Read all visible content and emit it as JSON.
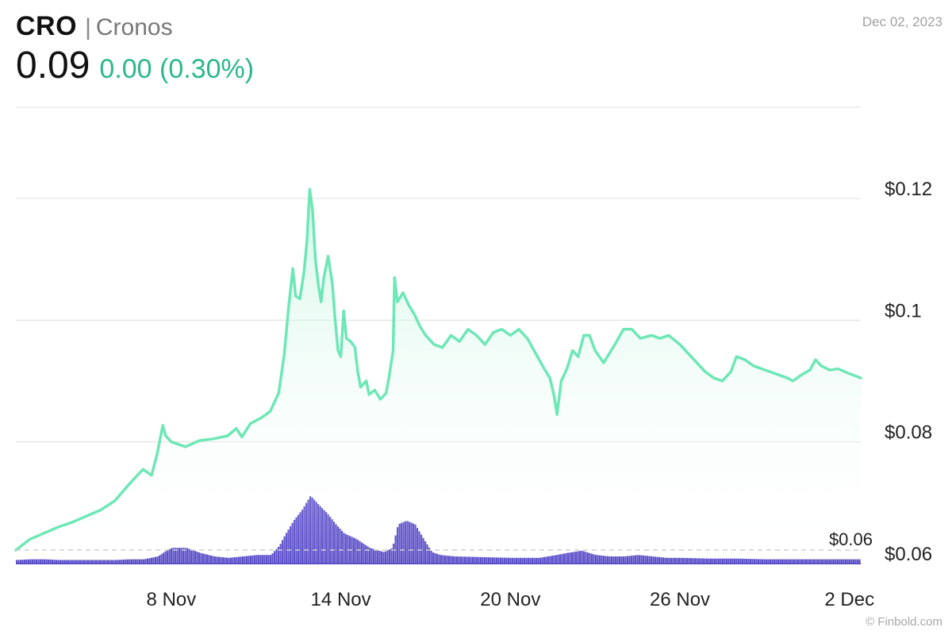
{
  "header": {
    "symbol": "CRO",
    "separator": "|",
    "name": "Cronos",
    "price": "0.09",
    "change": "0.00 (0.30%)",
    "date": "Dec 02, 2023"
  },
  "credit": "© Finbold.com",
  "colors": {
    "price_line": "#6ee7b7",
    "price_fill_top": "#c7f5e2",
    "volume": "#5b4fc9",
    "change_positive": "#2bb88a",
    "grid": "#dddddd"
  },
  "chart_data": {
    "type": "line",
    "title": "CRO | Cronos",
    "ylim": [
      0.06,
      0.135
    ],
    "y_ticks": [
      {
        "value": 0.12,
        "label": "$0.12"
      },
      {
        "value": 0.1,
        "label": "$0.1"
      },
      {
        "value": 0.08,
        "label": "$0.08"
      },
      {
        "value": 0.06,
        "label": "$0.06"
      }
    ],
    "x_ticks": [
      {
        "day": 8,
        "label": "8 Nov"
      },
      {
        "day": 14,
        "label": "14 Nov"
      },
      {
        "day": 20,
        "label": "20 Nov"
      },
      {
        "day": 26,
        "label": "26 Nov"
      },
      {
        "day": 32,
        "label": "2 Dec"
      }
    ],
    "xlim_day": [
      2.5,
      32.4
    ],
    "grid": "horizontal",
    "volume_min_label": "$0.06",
    "series": [
      {
        "name": "",
        "points": [
          [
            2.5,
            0.0622
          ],
          [
            3.0,
            0.064
          ],
          [
            3.5,
            0.065
          ],
          [
            4.0,
            0.066
          ],
          [
            4.5,
            0.0668
          ],
          [
            5.0,
            0.0678
          ],
          [
            5.5,
            0.0688
          ],
          [
            6.0,
            0.0703
          ],
          [
            6.5,
            0.073
          ],
          [
            7.0,
            0.0755
          ],
          [
            7.3,
            0.0745
          ],
          [
            7.5,
            0.078
          ],
          [
            7.7,
            0.0827
          ],
          [
            7.8,
            0.081
          ],
          [
            8.0,
            0.08
          ],
          [
            8.5,
            0.0792
          ],
          [
            9.0,
            0.0802
          ],
          [
            9.5,
            0.0805
          ],
          [
            10.0,
            0.081
          ],
          [
            10.3,
            0.0822
          ],
          [
            10.5,
            0.0808
          ],
          [
            10.8,
            0.083
          ],
          [
            11.2,
            0.084
          ],
          [
            11.5,
            0.085
          ],
          [
            11.8,
            0.088
          ],
          [
            12.0,
            0.0945
          ],
          [
            12.15,
            0.102
          ],
          [
            12.3,
            0.1085
          ],
          [
            12.4,
            0.104
          ],
          [
            12.55,
            0.1035
          ],
          [
            12.7,
            0.108
          ],
          [
            12.8,
            0.113
          ],
          [
            12.9,
            0.1215
          ],
          [
            13.0,
            0.118
          ],
          [
            13.1,
            0.11
          ],
          [
            13.2,
            0.106
          ],
          [
            13.3,
            0.103
          ],
          [
            13.4,
            0.107
          ],
          [
            13.55,
            0.1105
          ],
          [
            13.7,
            0.106
          ],
          [
            13.8,
            0.1
          ],
          [
            13.9,
            0.095
          ],
          [
            14.0,
            0.094
          ],
          [
            14.1,
            0.1015
          ],
          [
            14.2,
            0.097
          ],
          [
            14.35,
            0.0965
          ],
          [
            14.5,
            0.0955
          ],
          [
            14.6,
            0.0915
          ],
          [
            14.7,
            0.089
          ],
          [
            14.9,
            0.09
          ],
          [
            15.0,
            0.0878
          ],
          [
            15.2,
            0.0885
          ],
          [
            15.4,
            0.087
          ],
          [
            15.6,
            0.088
          ],
          [
            15.7,
            0.0905
          ],
          [
            15.85,
            0.095
          ],
          [
            15.9,
            0.107
          ],
          [
            16.0,
            0.103
          ],
          [
            16.2,
            0.1045
          ],
          [
            16.4,
            0.1025
          ],
          [
            16.6,
            0.101
          ],
          [
            16.8,
            0.099
          ],
          [
            17.0,
            0.0975
          ],
          [
            17.3,
            0.096
          ],
          [
            17.6,
            0.0955
          ],
          [
            17.9,
            0.0975
          ],
          [
            18.2,
            0.0965
          ],
          [
            18.5,
            0.0985
          ],
          [
            18.8,
            0.0975
          ],
          [
            19.1,
            0.096
          ],
          [
            19.4,
            0.098
          ],
          [
            19.7,
            0.0985
          ],
          [
            20.0,
            0.0975
          ],
          [
            20.3,
            0.0985
          ],
          [
            20.6,
            0.097
          ],
          [
            20.9,
            0.0945
          ],
          [
            21.2,
            0.092
          ],
          [
            21.4,
            0.0905
          ],
          [
            21.55,
            0.0875
          ],
          [
            21.65,
            0.0845
          ],
          [
            21.8,
            0.09
          ],
          [
            22.0,
            0.092
          ],
          [
            22.2,
            0.095
          ],
          [
            22.4,
            0.094
          ],
          [
            22.6,
            0.0975
          ],
          [
            22.8,
            0.0975
          ],
          [
            23.0,
            0.095
          ],
          [
            23.3,
            0.093
          ],
          [
            23.5,
            0.0945
          ],
          [
            23.7,
            0.096
          ],
          [
            24.0,
            0.0985
          ],
          [
            24.3,
            0.0985
          ],
          [
            24.6,
            0.097
          ],
          [
            25.0,
            0.0975
          ],
          [
            25.3,
            0.097
          ],
          [
            25.6,
            0.0975
          ],
          [
            26.0,
            0.096
          ],
          [
            26.3,
            0.0945
          ],
          [
            26.6,
            0.093
          ],
          [
            26.9,
            0.0915
          ],
          [
            27.2,
            0.0905
          ],
          [
            27.5,
            0.09
          ],
          [
            27.8,
            0.0915
          ],
          [
            28.0,
            0.094
          ],
          [
            28.3,
            0.0935
          ],
          [
            28.6,
            0.0925
          ],
          [
            28.9,
            0.092
          ],
          [
            29.2,
            0.0915
          ],
          [
            29.5,
            0.091
          ],
          [
            29.8,
            0.0905
          ],
          [
            30.0,
            0.09
          ],
          [
            30.3,
            0.091
          ],
          [
            30.6,
            0.0918
          ],
          [
            30.8,
            0.0935
          ],
          [
            31.0,
            0.0925
          ],
          [
            31.3,
            0.0918
          ],
          [
            31.6,
            0.092
          ],
          [
            32.0,
            0.0912
          ],
          [
            32.4,
            0.0905
          ]
        ]
      }
    ],
    "volume": {
      "note": "relative volume (0-1)",
      "points": [
        [
          2.5,
          0.05
        ],
        [
          3.0,
          0.06
        ],
        [
          3.5,
          0.06
        ],
        [
          4.0,
          0.05
        ],
        [
          4.5,
          0.05
        ],
        [
          5.0,
          0.05
        ],
        [
          5.5,
          0.05
        ],
        [
          6.0,
          0.05
        ],
        [
          6.5,
          0.06
        ],
        [
          7.0,
          0.06
        ],
        [
          7.5,
          0.1
        ],
        [
          7.8,
          0.18
        ],
        [
          8.0,
          0.22
        ],
        [
          8.5,
          0.22
        ],
        [
          9.0,
          0.15
        ],
        [
          9.5,
          0.1
        ],
        [
          10.0,
          0.08
        ],
        [
          10.5,
          0.1
        ],
        [
          11.0,
          0.12
        ],
        [
          11.5,
          0.12
        ],
        [
          11.8,
          0.25
        ],
        [
          12.0,
          0.4
        ],
        [
          12.3,
          0.6
        ],
        [
          12.6,
          0.75
        ],
        [
          12.9,
          0.95
        ],
        [
          13.2,
          0.82
        ],
        [
          13.5,
          0.7
        ],
        [
          13.8,
          0.55
        ],
        [
          14.1,
          0.42
        ],
        [
          14.5,
          0.35
        ],
        [
          15.0,
          0.22
        ],
        [
          15.5,
          0.16
        ],
        [
          15.8,
          0.22
        ],
        [
          16.0,
          0.55
        ],
        [
          16.3,
          0.6
        ],
        [
          16.6,
          0.55
        ],
        [
          16.9,
          0.35
        ],
        [
          17.2,
          0.16
        ],
        [
          17.5,
          0.12
        ],
        [
          18.0,
          0.1
        ],
        [
          19.0,
          0.09
        ],
        [
          20.0,
          0.08
        ],
        [
          21.0,
          0.08
        ],
        [
          21.6,
          0.12
        ],
        [
          22.0,
          0.15
        ],
        [
          22.5,
          0.18
        ],
        [
          23.0,
          0.12
        ],
        [
          23.5,
          0.1
        ],
        [
          24.0,
          0.1
        ],
        [
          24.5,
          0.12
        ],
        [
          25.0,
          0.1
        ],
        [
          25.5,
          0.08
        ],
        [
          26.0,
          0.08
        ],
        [
          27.0,
          0.07
        ],
        [
          28.0,
          0.07
        ],
        [
          29.0,
          0.06
        ],
        [
          30.0,
          0.06
        ],
        [
          31.0,
          0.06
        ],
        [
          32.0,
          0.06
        ],
        [
          32.4,
          0.06
        ]
      ]
    }
  }
}
